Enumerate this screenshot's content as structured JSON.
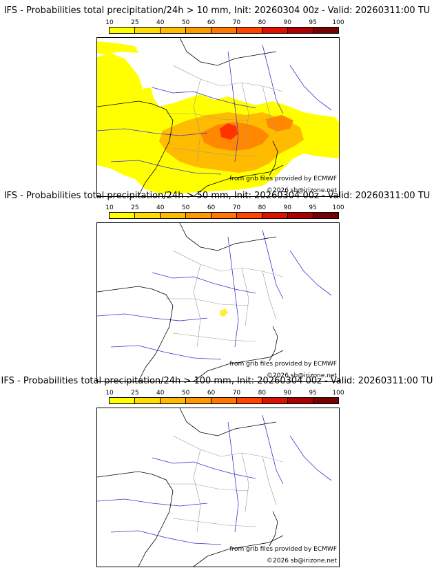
{
  "legend": {
    "ticks": [
      "10",
      "25",
      "40",
      "50",
      "60",
      "70",
      "80",
      "90",
      "95",
      "100"
    ],
    "colors": [
      "#ffff00",
      "#ffdd00",
      "#ffbb00",
      "#ff9900",
      "#ff7700",
      "#ff4400",
      "#dd1100",
      "#aa0000",
      "#770000",
      "#440000"
    ]
  },
  "credits": {
    "source": "from grib files provided by ECMWF",
    "copyright": "©2026 sb@irizone.net"
  },
  "panels": [
    {
      "title": "IFS - Probabilities total precipitation/24h > 10 mm, Init: 20260304 00z - Valid: 20260311:00 TU",
      "threshold_mm": 10
    },
    {
      "title": "IFS - Probabilities total precipitation/24h > 50 mm, Init: 20260304 00z - Valid: 20260311:00 TU",
      "threshold_mm": 50
    },
    {
      "title": "IFS - Probabilities total precipitation/24h > 100 mm, Init: 20260304 00z - Valid: 20260311:00 TU",
      "threshold_mm": 100
    }
  ]
}
